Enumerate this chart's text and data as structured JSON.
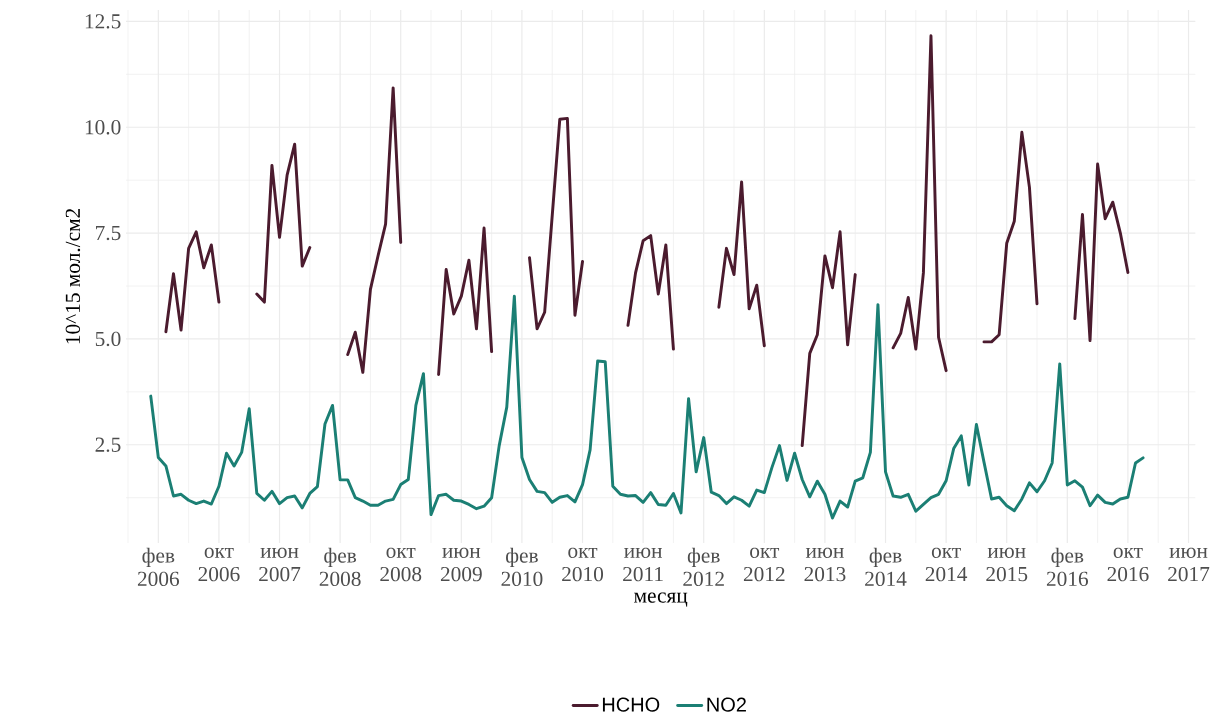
{
  "chart_data": {
    "type": "line",
    "xlabel": "месяц",
    "ylabel": "10^15 мол./см2",
    "x": [
      "2006-01",
      "2006-02",
      "2006-03",
      "2006-04",
      "2006-05",
      "2006-06",
      "2006-07",
      "2006-08",
      "2006-09",
      "2006-10",
      "2006-11",
      "2006-12",
      "2007-01",
      "2007-02",
      "2007-03",
      "2007-04",
      "2007-05",
      "2007-06",
      "2007-07",
      "2007-08",
      "2007-09",
      "2007-10",
      "2007-11",
      "2007-12",
      "2008-01",
      "2008-02",
      "2008-03",
      "2008-04",
      "2008-05",
      "2008-06",
      "2008-07",
      "2008-08",
      "2008-09",
      "2008-10",
      "2008-11",
      "2008-12",
      "2009-01",
      "2009-02",
      "2009-03",
      "2009-04",
      "2009-05",
      "2009-06",
      "2009-07",
      "2009-08",
      "2009-09",
      "2009-10",
      "2009-11",
      "2009-12",
      "2010-01",
      "2010-02",
      "2010-03",
      "2010-04",
      "2010-05",
      "2010-06",
      "2010-07",
      "2010-08",
      "2010-09",
      "2010-10",
      "2010-11",
      "2010-12",
      "2011-01",
      "2011-02",
      "2011-03",
      "2011-04",
      "2011-05",
      "2011-06",
      "2011-07",
      "2011-08",
      "2011-09",
      "2011-10",
      "2011-11",
      "2011-12",
      "2012-01",
      "2012-02",
      "2012-03",
      "2012-04",
      "2012-05",
      "2012-06",
      "2012-07",
      "2012-08",
      "2012-09",
      "2012-10",
      "2012-11",
      "2012-12",
      "2013-01",
      "2013-02",
      "2013-03",
      "2013-04",
      "2013-05",
      "2013-06",
      "2013-07",
      "2013-08",
      "2013-09",
      "2013-10",
      "2013-11",
      "2013-12",
      "2014-01",
      "2014-02",
      "2014-03",
      "2014-04",
      "2014-05",
      "2014-06",
      "2014-07",
      "2014-08",
      "2014-09",
      "2014-10",
      "2014-11",
      "2014-12",
      "2015-01",
      "2015-02",
      "2015-03",
      "2015-04",
      "2015-05",
      "2015-06",
      "2015-07",
      "2015-08",
      "2015-09",
      "2015-10",
      "2015-11",
      "2015-12",
      "2016-01",
      "2016-02",
      "2016-03",
      "2016-04",
      "2016-05",
      "2016-06",
      "2016-07",
      "2016-08",
      "2016-09",
      "2016-10",
      "2016-11",
      "2016-12"
    ],
    "series": [
      {
        "name": "HCHO",
        "color": "#4b1b2e",
        "values": [
          null,
          null,
          5.17,
          6.54,
          5.21,
          7.14,
          7.53,
          6.68,
          7.22,
          5.87,
          null,
          null,
          null,
          null,
          6.06,
          5.87,
          9.1,
          7.4,
          8.87,
          9.6,
          6.72,
          7.16,
          null,
          null,
          null,
          null,
          4.63,
          5.16,
          4.21,
          6.17,
          6.96,
          7.71,
          10.93,
          7.28,
          null,
          null,
          null,
          null,
          4.16,
          6.64,
          5.59,
          6.01,
          6.86,
          5.24,
          7.62,
          4.7,
          null,
          null,
          null,
          null,
          6.92,
          5.24,
          5.63,
          7.91,
          10.19,
          10.21,
          5.56,
          6.83,
          null,
          null,
          null,
          null,
          null,
          5.32,
          6.56,
          7.32,
          7.44,
          6.06,
          7.22,
          4.76,
          null,
          null,
          null,
          null,
          null,
          5.75,
          7.14,
          6.52,
          8.71,
          5.71,
          6.27,
          4.84,
          null,
          null,
          null,
          null,
          2.48,
          4.66,
          5.1,
          6.96,
          6.21,
          7.53,
          4.86,
          6.52,
          null,
          null,
          null,
          null,
          4.79,
          5.13,
          5.98,
          4.76,
          6.56,
          12.16,
          5.04,
          4.25,
          null,
          null,
          null,
          null,
          4.93,
          4.93,
          5.1,
          7.26,
          7.78,
          9.88,
          8.58,
          5.83,
          null,
          null,
          null,
          null,
          5.48,
          7.94,
          4.96,
          9.13,
          7.84,
          8.23,
          7.5,
          6.57,
          null,
          null
        ]
      },
      {
        "name": "NO2",
        "color": "#1b7f74",
        "values": [
          3.65,
          2.2,
          2.0,
          1.29,
          1.33,
          1.19,
          1.11,
          1.17,
          1.1,
          1.52,
          2.3,
          2.0,
          2.32,
          3.35,
          1.35,
          1.19,
          1.4,
          1.11,
          1.25,
          1.29,
          1.01,
          1.35,
          1.51,
          2.99,
          3.43,
          1.67,
          1.67,
          1.25,
          1.17,
          1.07,
          1.07,
          1.17,
          1.21,
          1.56,
          1.68,
          3.43,
          4.18,
          0.85,
          1.3,
          1.33,
          1.19,
          1.17,
          1.09,
          0.99,
          1.05,
          1.25,
          2.48,
          3.39,
          6.01,
          2.2,
          1.68,
          1.4,
          1.37,
          1.14,
          1.26,
          1.3,
          1.15,
          1.56,
          2.38,
          4.48,
          4.46,
          1.52,
          1.33,
          1.29,
          1.3,
          1.14,
          1.37,
          1.09,
          1.07,
          1.35,
          0.89,
          3.59,
          1.86,
          2.67,
          1.38,
          1.3,
          1.11,
          1.27,
          1.19,
          1.05,
          1.43,
          1.37,
          1.96,
          2.48,
          1.66,
          2.3,
          1.68,
          1.27,
          1.64,
          1.33,
          0.77,
          1.17,
          1.03,
          1.64,
          1.72,
          2.32,
          5.81,
          1.86,
          1.29,
          1.26,
          1.33,
          0.93,
          1.09,
          1.25,
          1.33,
          1.65,
          2.41,
          2.71,
          1.55,
          2.98,
          2.09,
          1.22,
          1.26,
          1.06,
          0.94,
          1.22,
          1.6,
          1.39,
          1.65,
          2.07,
          4.41,
          1.55,
          1.65,
          1.5,
          1.06,
          1.31,
          1.14,
          1.1,
          1.22,
          1.26,
          2.07,
          2.19
        ]
      }
    ],
    "xlim": [
      "2005-09-23",
      "2017-06-28"
    ],
    "xticks": [
      {
        "value": "2006-02",
        "label": "фев 2006"
      },
      {
        "value": "2006-10",
        "label": "окт 2006"
      },
      {
        "value": "2007-06",
        "label": "июн 2007"
      },
      {
        "value": "2008-02",
        "label": "фев 2008"
      },
      {
        "value": "2008-10",
        "label": "окт 2008"
      },
      {
        "value": "2009-06",
        "label": "июн 2009"
      },
      {
        "value": "2010-02",
        "label": "фев 2010"
      },
      {
        "value": "2010-10",
        "label": "окт 2010"
      },
      {
        "value": "2011-06",
        "label": "июн 2011"
      },
      {
        "value": "2012-02",
        "label": "фев 2012"
      },
      {
        "value": "2012-10",
        "label": "окт 2012"
      },
      {
        "value": "2013-06",
        "label": "июн 2013"
      },
      {
        "value": "2014-02",
        "label": "фев 2014"
      },
      {
        "value": "2014-10",
        "label": "окт 2014"
      },
      {
        "value": "2015-06",
        "label": "июн 2015"
      },
      {
        "value": "2016-02",
        "label": "фев 2016"
      },
      {
        "value": "2016-10",
        "label": "окт 2016"
      },
      {
        "value": "2017-06",
        "label": "июн 2017"
      }
    ],
    "ylim": [
      0.18,
      12.77
    ],
    "yticks": [
      2.5,
      {
        "value": 5,
        "label": "5.0"
      },
      7.5,
      {
        "value": 10,
        "label": "10.0"
      },
      12.5
    ],
    "grid": true,
    "legend": "bottom"
  }
}
